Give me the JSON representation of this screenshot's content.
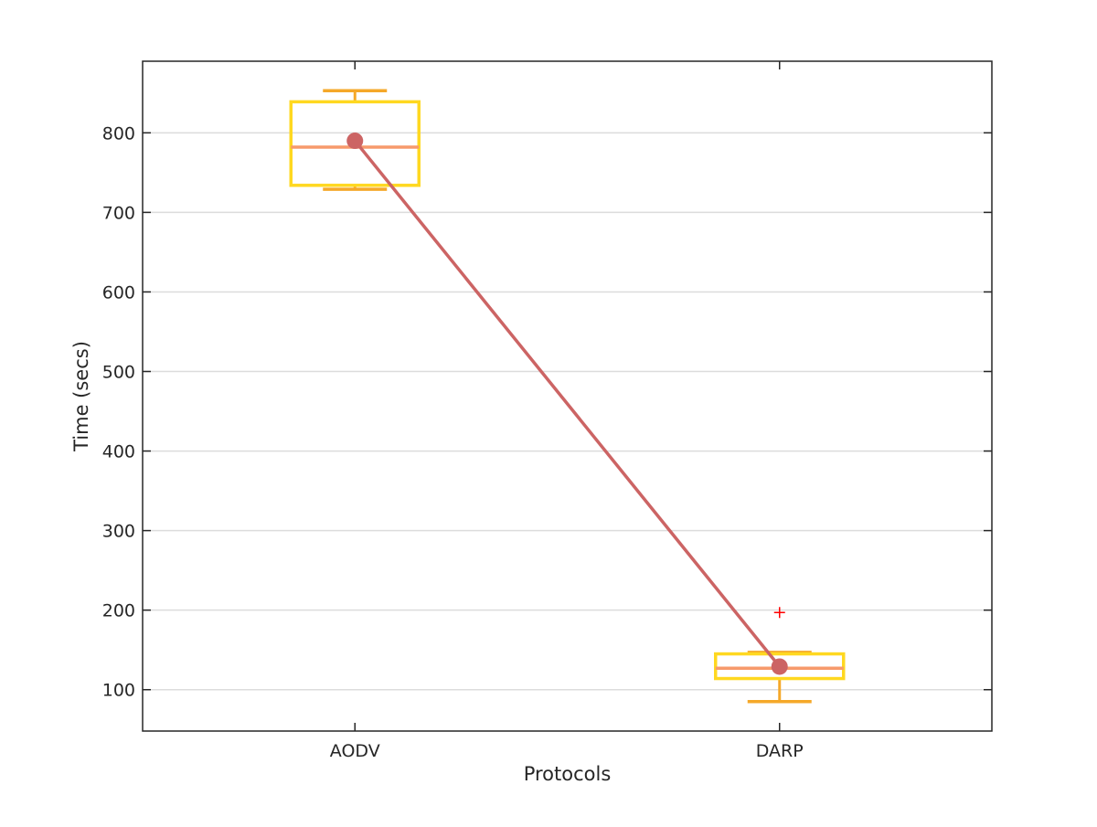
{
  "chart_data": {
    "type": "box",
    "title": "",
    "xlabel": "Protocols",
    "ylabel": "Time (secs)",
    "categories": [
      "AODV",
      "DARP"
    ],
    "ylim": [
      48,
      890
    ],
    "yticks": [
      100,
      200,
      300,
      400,
      500,
      600,
      700,
      800
    ],
    "grid": "horizontal",
    "boxes": [
      {
        "category": "AODV",
        "whisker_low": 729,
        "q1": 734,
        "median": 782,
        "q3": 839,
        "whisker_high": 853,
        "outliers": []
      },
      {
        "category": "DARP",
        "whisker_low": 85,
        "q1": 114,
        "median": 127,
        "q3": 145,
        "whisker_high": 147,
        "outliers": [
          197
        ]
      }
    ],
    "mean_line": {
      "values": [
        790,
        129
      ]
    }
  },
  "colors": {
    "box_edge": "#FFD820",
    "median": "#F79A6B",
    "whisker": "#F5A829",
    "mean_line": "#CC6464",
    "outlier": "#FF0000",
    "grid": "#DCDCDC",
    "axis": "#262626"
  }
}
